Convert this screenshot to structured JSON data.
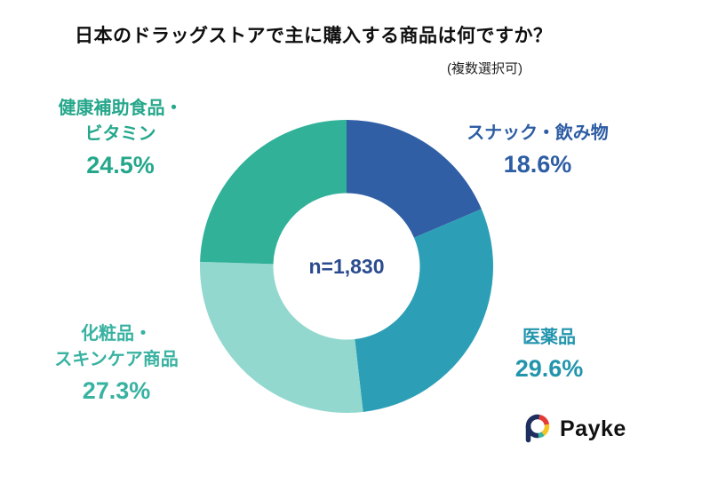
{
  "title": "日本のドラッグストアで主に購入する商品は何ですか？",
  "subtitle": "(複数選択可)",
  "center_label": "n=1,830",
  "logo": {
    "icon": "payke-mark-icon",
    "text": "Payke"
  },
  "labels": {
    "top_left": {
      "line1": "健康補助食品・",
      "line2": "ビタミン",
      "pct": "24.5%",
      "color": "#25a78b"
    },
    "top_right": {
      "line1": "スナック・飲み物",
      "pct": "18.6%",
      "color": "#2d5da4"
    },
    "bottom_left": {
      "line1": "化粧品・",
      "line2": "スキンケア商品",
      "pct": "27.3%",
      "color": "#38b2a1"
    },
    "bottom_right": {
      "line1": "医薬品",
      "pct": "29.6%",
      "color": "#2295ad"
    }
  },
  "chart_data": {
    "type": "pie",
    "subtype": "donut",
    "title": "日本のドラッグストアで主に購入する商品は何ですか？",
    "note": "(複数選択可)",
    "sample_size_label": "n=1,830",
    "sample_size": 1830,
    "start_angle_deg": -90,
    "direction": "clockwise",
    "inner_radius_ratio": 0.5,
    "categories": [
      "スナック・飲み物",
      "医薬品",
      "化粧品・スキンケア商品",
      "健康補助食品・ビタミン"
    ],
    "values": [
      18.6,
      29.6,
      27.3,
      24.5
    ],
    "unit": "%",
    "colors": [
      "#315fa5",
      "#2c9fb7",
      "#92d8ce",
      "#30b198"
    ],
    "center_text_color": "#2a4b8d",
    "background_color": "#ffffff"
  }
}
